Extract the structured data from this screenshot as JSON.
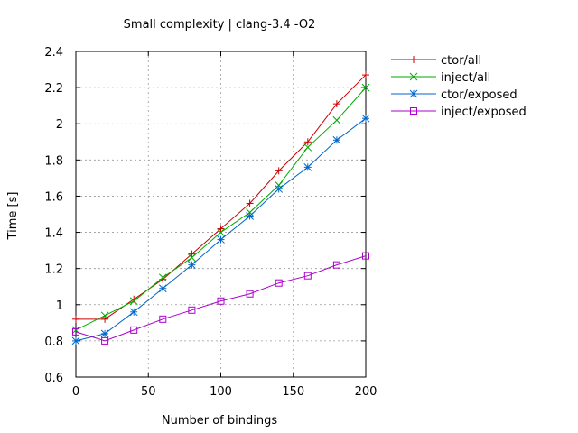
{
  "chart_data": {
    "type": "line",
    "title": "Small complexity | clang-3.4 -O2",
    "xlabel": "Number of bindings",
    "ylabel": "Time [s]",
    "xlim": [
      0,
      200
    ],
    "ylim": [
      0.6,
      2.4
    ],
    "grid": true,
    "legend_position": "top-right",
    "x_ticks": [
      "0",
      "50",
      "100",
      "150",
      "200"
    ],
    "y_ticks": [
      "0.6",
      "0.8",
      "1",
      "1.2",
      "1.4",
      "1.6",
      "1.8",
      "2",
      "2.2",
      "2.4"
    ],
    "x": [
      0,
      20,
      40,
      60,
      80,
      100,
      120,
      140,
      160,
      180,
      200
    ],
    "series": [
      {
        "name": "ctor/all",
        "color": "#cc0000",
        "marker": "plus",
        "values": [
          0.92,
          0.92,
          1.03,
          1.14,
          1.28,
          1.42,
          1.56,
          1.74,
          1.9,
          2.11,
          2.27
        ]
      },
      {
        "name": "inject/all",
        "color": "#00aa00",
        "marker": "cross",
        "values": [
          0.86,
          0.94,
          1.02,
          1.15,
          1.26,
          1.4,
          1.51,
          1.66,
          1.87,
          2.02,
          2.2
        ]
      },
      {
        "name": "ctor/exposed",
        "color": "#0066cc",
        "marker": "star",
        "values": [
          0.8,
          0.84,
          0.96,
          1.09,
          1.22,
          1.36,
          1.49,
          1.64,
          1.76,
          1.91,
          2.03
        ]
      },
      {
        "name": "inject/exposed",
        "color": "#aa00cc",
        "marker": "square",
        "values": [
          0.85,
          0.8,
          0.86,
          0.92,
          0.97,
          1.02,
          1.06,
          1.12,
          1.16,
          1.22,
          1.27
        ]
      }
    ]
  }
}
